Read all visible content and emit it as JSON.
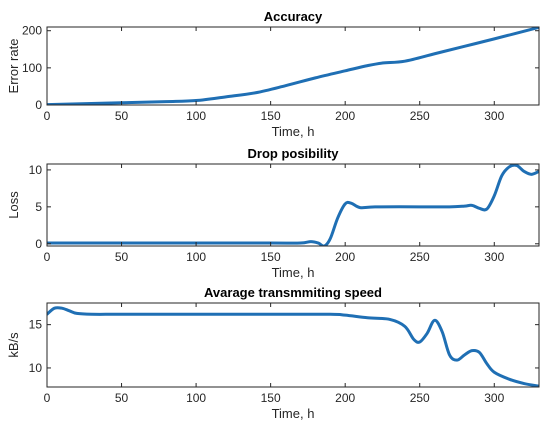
{
  "chart_data": [
    {
      "type": "line",
      "title": "Accuracy",
      "xlabel": "Time, h",
      "ylabel": "Error rate",
      "xlim": [
        0,
        330
      ],
      "ylim": [
        0,
        210
      ],
      "xticks": [
        0,
        50,
        100,
        150,
        200,
        250,
        300
      ],
      "yticks": [
        0,
        100,
        200
      ],
      "grid": false,
      "color": "#1f6fb4",
      "series": [
        {
          "x": [
            0,
            20,
            50,
            80,
            100,
            120,
            140,
            160,
            180,
            200,
            215,
            225,
            240,
            260,
            280,
            300,
            330
          ],
          "y": [
            1,
            3,
            6,
            9,
            12,
            22,
            33,
            52,
            73,
            92,
            106,
            113,
            118,
            138,
            158,
            178,
            209
          ]
        }
      ]
    },
    {
      "type": "line",
      "title": "Drop posibility",
      "xlabel": "Time, h",
      "ylabel": "Loss",
      "xlim": [
        0,
        330
      ],
      "ylim": [
        -0.3,
        10.8
      ],
      "xticks": [
        0,
        50,
        100,
        150,
        200,
        250,
        300
      ],
      "yticks": [
        0,
        5,
        10
      ],
      "grid": false,
      "color": "#1f6fb4",
      "series": [
        {
          "x": [
            0,
            50,
            100,
            150,
            170,
            177,
            182,
            186,
            190,
            195,
            200,
            204,
            210,
            220,
            250,
            270,
            280,
            285,
            290,
            295,
            300,
            305,
            310,
            315,
            320,
            325,
            330
          ],
          "y": [
            0.1,
            0.1,
            0.1,
            0.1,
            0.1,
            0.3,
            0.1,
            -0.3,
            0.7,
            3.5,
            5.4,
            5.5,
            4.9,
            5.0,
            5.0,
            5.0,
            5.1,
            5.2,
            4.8,
            4.7,
            6.5,
            9.2,
            10.4,
            10.6,
            9.8,
            9.4,
            9.8
          ]
        }
      ]
    },
    {
      "type": "line",
      "title": "Avarage transmmiting speed",
      "xlabel": "Time, h",
      "ylabel": "kB/s",
      "xlim": [
        0,
        330
      ],
      "ylim": [
        7.8,
        17.5
      ],
      "xticks": [
        0,
        50,
        100,
        150,
        200,
        250,
        300
      ],
      "yticks": [
        10,
        15
      ],
      "grid": false,
      "color": "#1f6fb4",
      "series": [
        {
          "x": [
            0,
            5,
            10,
            15,
            20,
            30,
            50,
            100,
            150,
            190,
            200,
            215,
            230,
            240,
            246,
            250,
            255,
            260,
            265,
            270,
            275,
            280,
            285,
            290,
            295,
            300,
            310,
            320,
            330
          ],
          "y": [
            16.2,
            16.9,
            16.9,
            16.6,
            16.3,
            16.2,
            16.2,
            16.2,
            16.2,
            16.2,
            16.1,
            15.8,
            15.6,
            14.8,
            13.3,
            13.0,
            14.0,
            15.5,
            14.2,
            11.5,
            10.9,
            11.5,
            12.0,
            11.8,
            10.5,
            9.5,
            8.7,
            8.2,
            7.9
          ]
        }
      ]
    }
  ]
}
